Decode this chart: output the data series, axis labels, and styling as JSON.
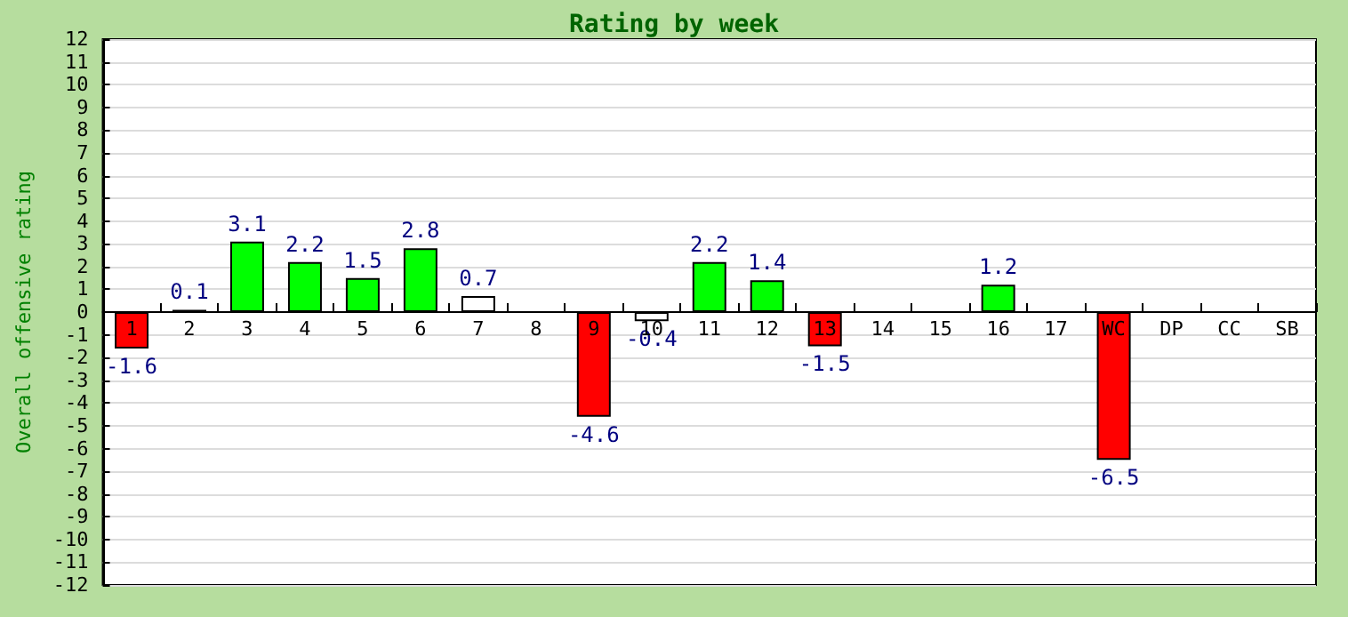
{
  "chart_data": {
    "type": "bar",
    "title": "Rating by week",
    "ylabel": "Overall offensive rating",
    "categories": [
      "1",
      "2",
      "3",
      "4",
      "5",
      "6",
      "7",
      "8",
      "9",
      "10",
      "11",
      "12",
      "13",
      "14",
      "15",
      "16",
      "17",
      "WC",
      "DP",
      "CC",
      "SB"
    ],
    "values": [
      -1.6,
      0.1,
      3.1,
      2.2,
      1.5,
      2.8,
      0.7,
      null,
      -4.6,
      -0.4,
      2.2,
      1.4,
      -1.5,
      null,
      null,
      1.2,
      null,
      -6.5,
      null,
      null,
      null
    ],
    "colors": [
      "#ff0000",
      "#ffffff",
      "#00ff00",
      "#00ff00",
      "#00ff00",
      "#00ff00",
      "#ffffff",
      null,
      "#ff0000",
      "#ffffff",
      "#00ff00",
      "#00ff00",
      "#ff0000",
      null,
      null,
      "#00ff00",
      null,
      "#ff0000",
      null,
      null,
      null
    ],
    "ylim": [
      -12,
      12
    ],
    "yticks": [
      -12,
      -11,
      -10,
      -9,
      -8,
      -7,
      -6,
      -5,
      -4,
      -3,
      -2,
      -1,
      0,
      1,
      2,
      3,
      4,
      5,
      6,
      7,
      8,
      9,
      10,
      11,
      12
    ],
    "grid": "y",
    "data_labels": true
  }
}
